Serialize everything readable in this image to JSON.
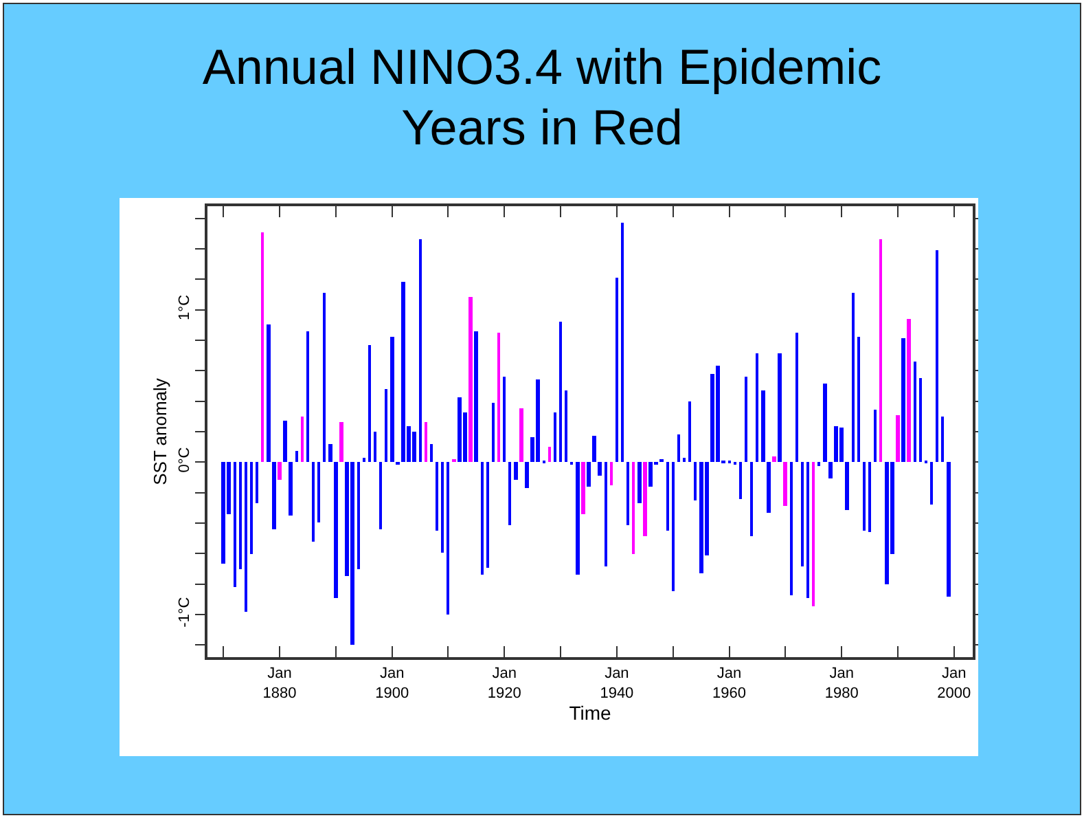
{
  "chart_data": {
    "type": "bar",
    "title": "Annual NINO3.4 with Epidemic Years in Red",
    "xlabel": "Time",
    "ylabel": "SST anomaly",
    "x": [
      "1870",
      "1871",
      "1872",
      "1873",
      "1874",
      "1875",
      "1876",
      "1877",
      "1878",
      "1879",
      "1880",
      "1881",
      "1882",
      "1883",
      "1884",
      "1885",
      "1886",
      "1887",
      "1888",
      "1889",
      "1890",
      "1891",
      "1892",
      "1893",
      "1894",
      "1895",
      "1896",
      "1897",
      "1898",
      "1899",
      "1900",
      "1901",
      "1902",
      "1903",
      "1904",
      "1905",
      "1906",
      "1907",
      "1908",
      "1909",
      "1910",
      "1911",
      "1912",
      "1913",
      "1914",
      "1915",
      "1916",
      "1917",
      "1918",
      "1919",
      "1920",
      "1921",
      "1922",
      "1923",
      "1924",
      "1925",
      "1926",
      "1927",
      "1928",
      "1929",
      "1930",
      "1931",
      "1932",
      "1933",
      "1934",
      "1935",
      "1936",
      "1937",
      "1938",
      "1939",
      "1940",
      "1941",
      "1942",
      "1943",
      "1944",
      "1945",
      "1946",
      "1947",
      "1948",
      "1949",
      "1950",
      "1951",
      "1952",
      "1953",
      "1954",
      "1955",
      "1956",
      "1957",
      "1958",
      "1959",
      "1960",
      "1961",
      "1962",
      "1963",
      "1964",
      "1965",
      "1966",
      "1967",
      "1968",
      "1969",
      "1970",
      "1971",
      "1972",
      "1973",
      "1974",
      "1975",
      "1976",
      "1977",
      "1978",
      "1979",
      "1980",
      "1981",
      "1982",
      "1983",
      "1984",
      "1985",
      "1986",
      "1987",
      "1988",
      "1989",
      "1990",
      "1991",
      "1992",
      "1993",
      "1994",
      "1995",
      "1996",
      "1997",
      "1998",
      "1999"
    ],
    "values": [
      -0.67,
      -0.34,
      -0.82,
      -0.7,
      -0.98,
      -0.6,
      -0.27,
      1.51,
      0.9,
      -0.44,
      -0.12,
      0.27,
      -0.35,
      0.07,
      0.3,
      0.86,
      -0.52,
      -0.4,
      1.11,
      0.12,
      -0.89,
      0.26,
      -0.75,
      -1.2,
      -0.7,
      0.03,
      0.77,
      0.2,
      -0.44,
      0.48,
      0.82,
      -0.02,
      1.18,
      0.24,
      0.2,
      1.46,
      0.26,
      0.12,
      -0.45,
      -0.59,
      -1.0,
      0.02,
      0.43,
      0.33,
      1.08,
      0.86,
      -0.74,
      -0.69,
      0.39,
      0.85,
      0.56,
      -0.41,
      -0.12,
      0.35,
      -0.17,
      0.16,
      0.54,
      0.01,
      0.1,
      0.33,
      0.92,
      0.47,
      -0.02,
      -0.74,
      -0.34,
      -0.16,
      0.17,
      -0.09,
      -0.68,
      -0.15,
      1.21,
      1.57,
      -0.41,
      -0.6,
      -0.27,
      -0.49,
      -0.16,
      -0.01,
      0.02,
      -0.45,
      -0.85,
      0.18,
      0.03,
      0.4,
      -0.25,
      -0.73,
      -0.61,
      0.58,
      0.63,
      0.01,
      0.01,
      -0.02,
      -0.24,
      0.56,
      -0.49,
      0.71,
      0.47,
      -0.33,
      0.04,
      0.71,
      -0.29,
      -0.87,
      0.85,
      -0.68,
      -0.89,
      -0.95,
      -0.03,
      0.52,
      -0.11,
      0.24,
      0.23,
      -0.31,
      1.11,
      0.82,
      -0.45,
      -0.46,
      0.34,
      1.46,
      -0.8,
      -0.6,
      0.31,
      0.81,
      0.94,
      0.66,
      0.55,
      0.01,
      -0.28,
      1.39,
      0.3,
      -0.88
    ],
    "colors": [
      "#0000ff",
      "#0000ff",
      "#0000ff",
      "#0000ff",
      "#0000ff",
      "#0000ff",
      "#0000ff",
      "#ff00ff",
      "#0000ff",
      "#0000ff",
      "#ff00ff",
      "#0000ff",
      "#0000ff",
      "#0000ff",
      "#ff00ff",
      "#0000ff",
      "#0000ff",
      "#0000ff",
      "#0000ff",
      "#0000ff",
      "#0000ff",
      "#ff00ff",
      "#0000ff",
      "#0000ff",
      "#0000ff",
      "#0000ff",
      "#0000ff",
      "#0000ff",
      "#0000ff",
      "#0000ff",
      "#0000ff",
      "#0000ff",
      "#0000ff",
      "#0000ff",
      "#0000ff",
      "#0000ff",
      "#ff00ff",
      "#0000ff",
      "#0000ff",
      "#0000ff",
      "#0000ff",
      "#ff00ff",
      "#0000ff",
      "#0000ff",
      "#ff00ff",
      "#0000ff",
      "#0000ff",
      "#0000ff",
      "#0000ff",
      "#ff00ff",
      "#0000ff",
      "#0000ff",
      "#0000ff",
      "#ff00ff",
      "#0000ff",
      "#0000ff",
      "#0000ff",
      "#0000ff",
      "#ff00ff",
      "#0000ff",
      "#0000ff",
      "#0000ff",
      "#0000ff",
      "#0000ff",
      "#ff00ff",
      "#0000ff",
      "#0000ff",
      "#0000ff",
      "#0000ff",
      "#ff00ff",
      "#0000ff",
      "#0000ff",
      "#0000ff",
      "#ff00ff",
      "#0000ff",
      "#ff00ff",
      "#0000ff",
      "#0000ff",
      "#0000ff",
      "#0000ff",
      "#0000ff",
      "#0000ff",
      "#0000ff",
      "#0000ff",
      "#0000ff",
      "#0000ff",
      "#0000ff",
      "#0000ff",
      "#0000ff",
      "#0000ff",
      "#0000ff",
      "#0000ff",
      "#0000ff",
      "#0000ff",
      "#0000ff",
      "#0000ff",
      "#0000ff",
      "#0000ff",
      "#ff00ff",
      "#0000ff",
      "#ff00ff",
      "#0000ff",
      "#0000ff",
      "#0000ff",
      "#0000ff",
      "#ff00ff",
      "#0000ff",
      "#0000ff",
      "#0000ff",
      "#0000ff",
      "#0000ff",
      "#0000ff",
      "#0000ff",
      "#0000ff",
      "#0000ff",
      "#0000ff",
      "#0000ff",
      "#ff00ff",
      "#0000ff",
      "#0000ff",
      "#ff00ff",
      "#0000ff",
      "#ff00ff",
      "#0000ff",
      "#0000ff",
      "#0000ff",
      "#0000ff",
      "#0000ff",
      "#0000ff",
      "#0000ff"
    ],
    "xlim": [
      "1867-03",
      "2003-05"
    ],
    "xticks": [
      {
        "value": "1870",
        "label": null
      },
      {
        "value": "1880",
        "label": "Jan 1880"
      },
      {
        "value": "1890",
        "label": null
      },
      {
        "value": "1900",
        "label": "Jan 1900"
      },
      {
        "value": "1910",
        "label": null
      },
      {
        "value": "1920",
        "label": "Jan 1920"
      },
      {
        "value": "1930",
        "label": null
      },
      {
        "value": "1940",
        "label": "Jan 1940"
      },
      {
        "value": "1950",
        "label": null
      },
      {
        "value": "1960",
        "label": "Jan 1960"
      },
      {
        "value": "1970",
        "label": null
      },
      {
        "value": "1980",
        "label": "Jan 1980"
      },
      {
        "value": "1990",
        "label": null
      },
      {
        "value": "2000",
        "label": "Jan 2000"
      }
    ],
    "ylim": [
      -1.28,
      1.68
    ],
    "yticks": [
      {
        "value": -1.2,
        "label": null
      },
      {
        "value": -1,
        "label": "-1°C"
      },
      {
        "value": -0.8,
        "label": null
      },
      {
        "value": -0.6,
        "label": null
      },
      {
        "value": -0.4,
        "label": null
      },
      {
        "value": -0.2,
        "label": null
      },
      {
        "value": 0,
        "label": "0°C"
      },
      {
        "value": 0.2,
        "label": null
      },
      {
        "value": 0.4,
        "label": null
      },
      {
        "value": 0.6,
        "label": null
      },
      {
        "value": 0.8,
        "label": null
      },
      {
        "value": 1,
        "label": "1°C"
      },
      {
        "value": 1.2,
        "label": null
      },
      {
        "value": 1.4,
        "label": null
      },
      {
        "value": 1.6,
        "label": null
      }
    ],
    "grid": false
  }
}
